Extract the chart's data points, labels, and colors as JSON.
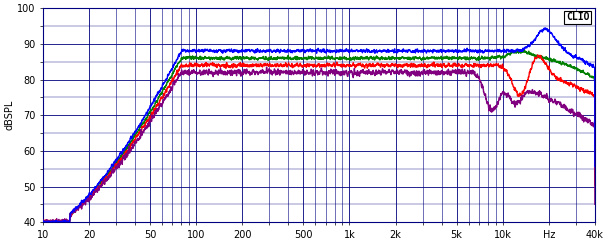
{
  "title": "CLIO",
  "ylabel": "dBSPL",
  "xlabel_ticks": [
    "10",
    "20",
    "50",
    "100",
    "200",
    "500",
    "1k",
    "2k",
    "5k",
    "10k",
    "Hz",
    "40k"
  ],
  "xlabel_vals": [
    10,
    20,
    50,
    100,
    200,
    500,
    1000,
    2000,
    5000,
    10000,
    20000,
    40000
  ],
  "xlim": [
    10,
    40000
  ],
  "ylim": [
    40,
    100
  ],
  "yticks": [
    40,
    50,
    60,
    70,
    80,
    90,
    100
  ],
  "bg_color": "#ffffff",
  "grid_color": "#000080",
  "line_colors": [
    "#0000ff",
    "#008000",
    "#ff0000",
    "#800080"
  ],
  "line_width": 1.0
}
